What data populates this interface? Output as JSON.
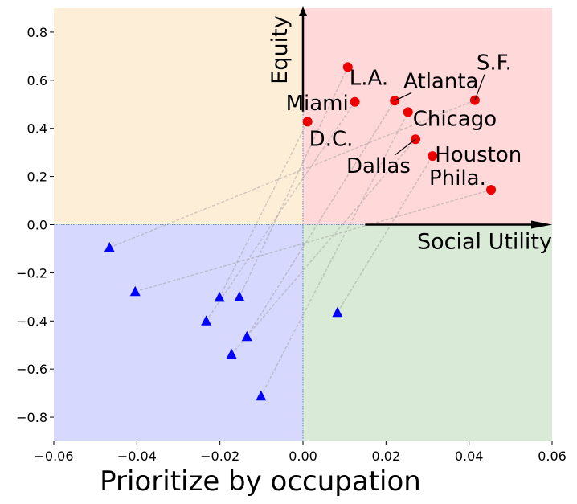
{
  "chart_data": {
    "type": "scatter",
    "xlabel": "Prioritize by occupation",
    "xlim": [
      -0.06,
      0.06
    ],
    "ylim": [
      -0.9,
      0.9
    ],
    "xticks": [
      "−0.06",
      "−0.04",
      "−0.02",
      "0.00",
      "0.02",
      "0.04",
      "0.06"
    ],
    "yticks": [
      "−0.8",
      "−0.6",
      "−0.4",
      "−0.2",
      "0.0",
      "0.2",
      "0.4",
      "0.6",
      "0.8"
    ],
    "xtick_values": [
      -0.06,
      -0.04,
      -0.02,
      0.0,
      0.02,
      0.04,
      0.06
    ],
    "ytick_values": [
      -0.8,
      -0.6,
      -0.4,
      -0.2,
      0.0,
      0.2,
      0.4,
      0.6,
      0.8
    ],
    "axis_arrow_labels": {
      "x": "Social Utility",
      "y": "Equity"
    },
    "quadrant_colors": {
      "top_left": "#fdeed8",
      "top_right": "#ffd8da",
      "bottom_left": "#d7d8fd",
      "bottom_right": "#d9ebd6"
    },
    "series": [
      {
        "marker": "circle",
        "color": "#ee0000",
        "points": [
          {
            "label": "L.A.",
            "x": 0.0108,
            "y": 0.655
          },
          {
            "label": "Miami",
            "x": 0.0125,
            "y": 0.51
          },
          {
            "label": "D.C.",
            "x": 0.0011,
            "y": 0.428
          },
          {
            "label": "Atlanta",
            "x": 0.0221,
            "y": 0.515
          },
          {
            "label": "Chicago",
            "x": 0.0253,
            "y": 0.468
          },
          {
            "label": "S.F.",
            "x": 0.0414,
            "y": 0.517
          },
          {
            "label": "Dallas",
            "x": 0.0271,
            "y": 0.355
          },
          {
            "label": "Houston",
            "x": 0.0312,
            "y": 0.285
          },
          {
            "label": "Phila.",
            "x": 0.0453,
            "y": 0.145
          }
        ]
      },
      {
        "marker": "triangle",
        "color": "#0000ff",
        "points": [
          {
            "x": -0.0466,
            "y": -0.095
          },
          {
            "x": -0.0404,
            "y": -0.278
          },
          {
            "x": -0.0201,
            "y": -0.302
          },
          {
            "x": -0.0153,
            "y": -0.3
          },
          {
            "x": -0.0233,
            "y": -0.4
          },
          {
            "x": -0.0135,
            "y": -0.465
          },
          {
            "x": -0.0172,
            "y": -0.538
          },
          {
            "x": -0.0101,
            "y": -0.712
          },
          {
            "x": 0.0083,
            "y": -0.365
          }
        ]
      }
    ],
    "connections": [
      [
        0,
        5
      ],
      [
        1,
        8
      ],
      [
        2,
        2
      ],
      [
        3,
        0
      ],
      [
        4,
        1
      ],
      [
        5,
        3
      ],
      [
        6,
        6
      ],
      [
        7,
        4
      ],
      [
        8,
        7
      ]
    ]
  }
}
